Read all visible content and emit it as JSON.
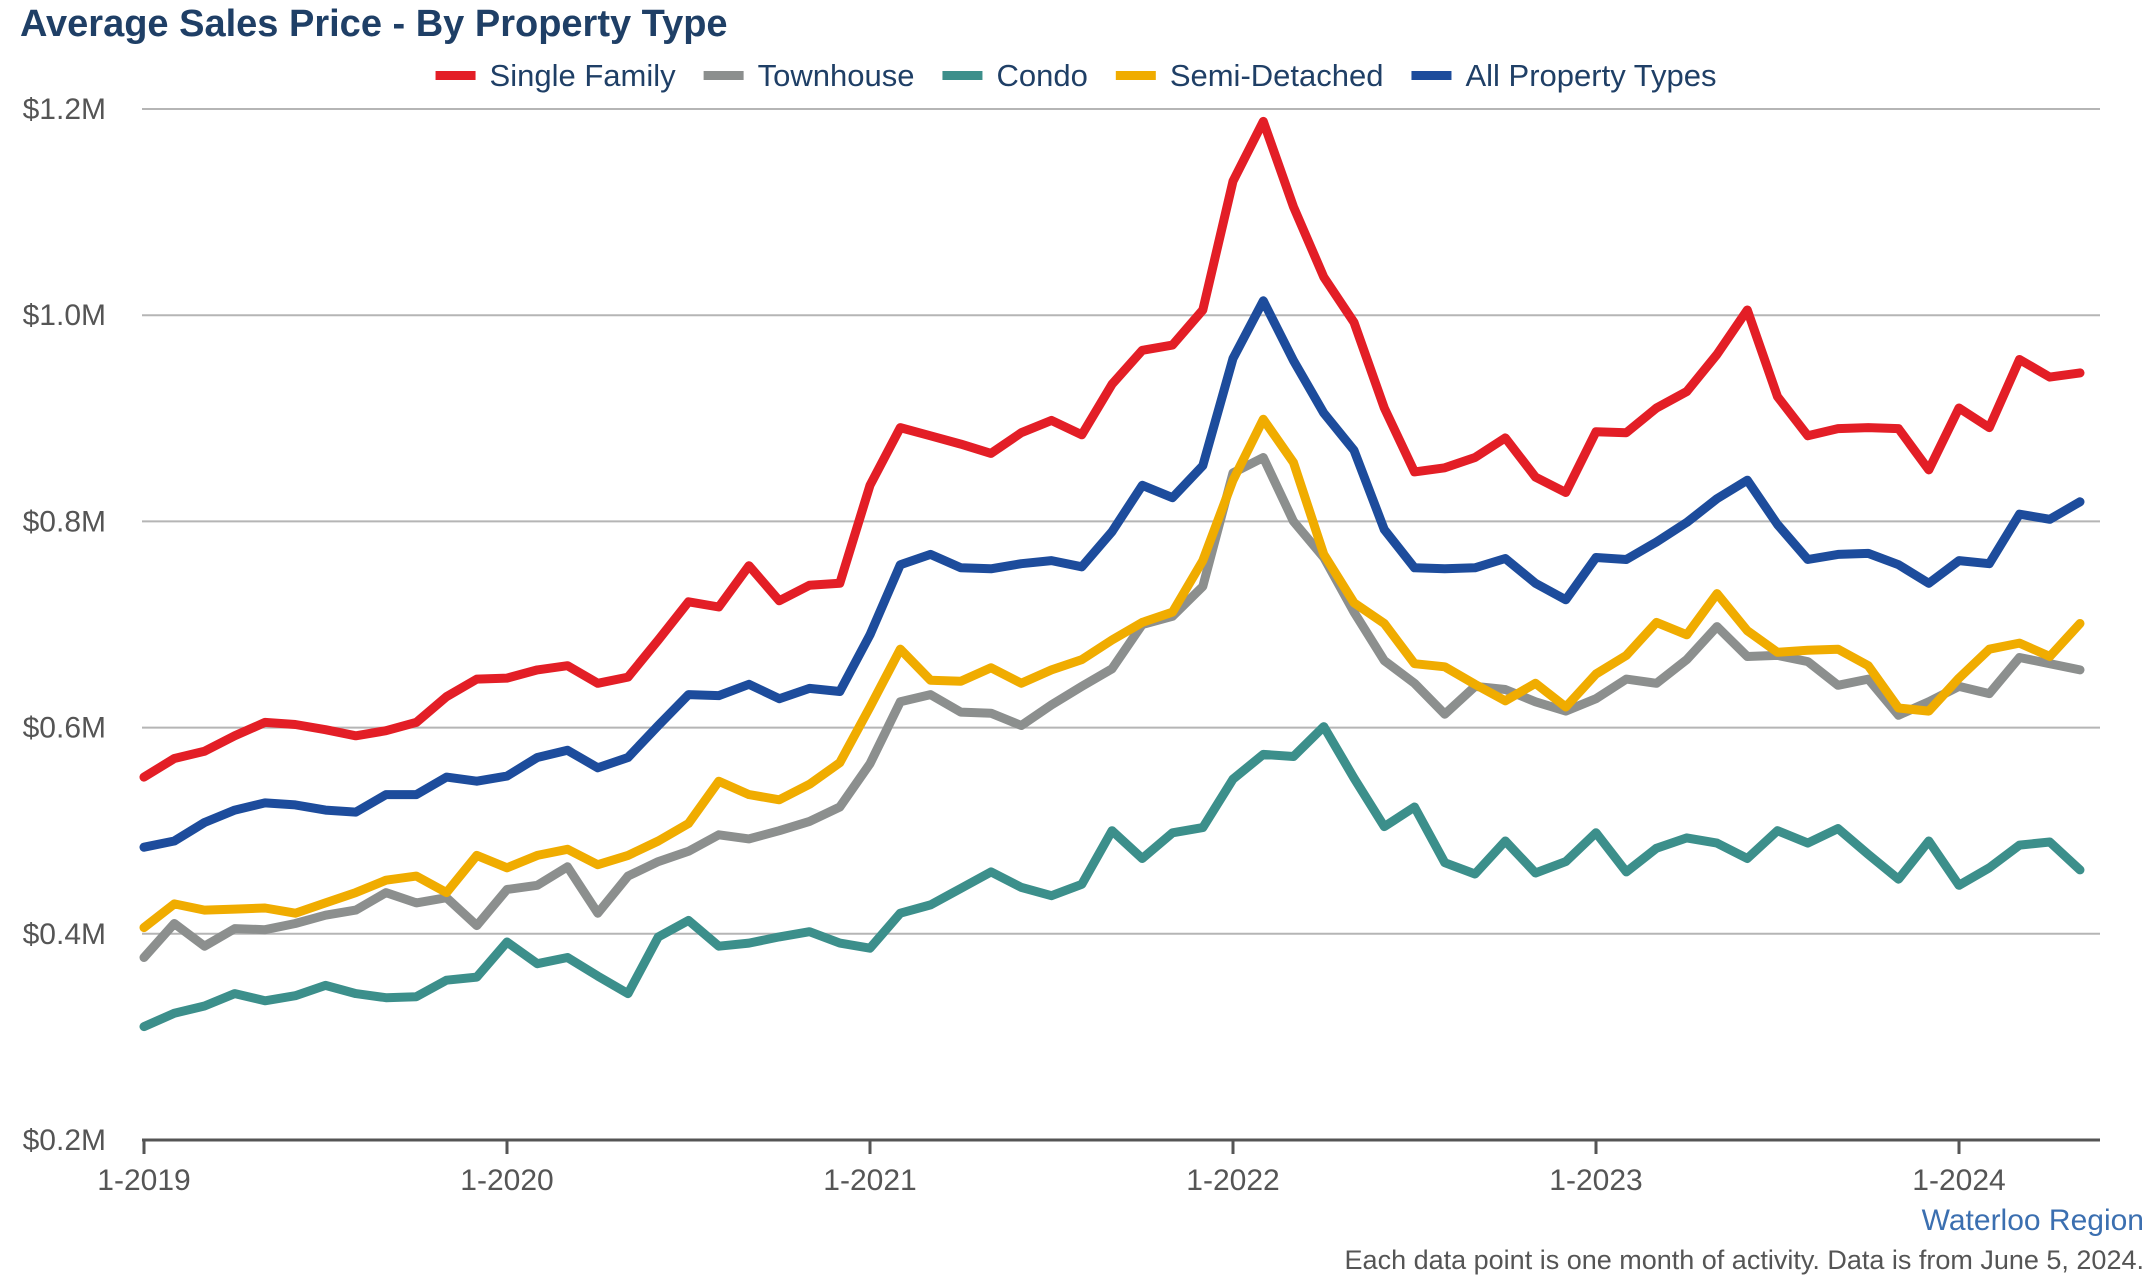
{
  "chart_data": {
    "type": "line",
    "title": "Average Sales Price - By Property Type",
    "xlabel": "",
    "ylabel": "",
    "x_start": "2019-01",
    "x_end": "2024-05",
    "x_ticks": [
      "1-2019",
      "1-2020",
      "1-2021",
      "1-2022",
      "1-2023",
      "1-2024"
    ],
    "y_ticks": [
      "$0.2M",
      "$0.4M",
      "$0.6M",
      "$0.8M",
      "$1.0M",
      "$1.2M"
    ],
    "y_tick_values": [
      0.2,
      0.4,
      0.6,
      0.8,
      1.0,
      1.2
    ],
    "ylim": [
      0.2,
      1.2
    ],
    "y_unit": "$M",
    "grid": "horizontal",
    "legend_position": "top",
    "region_label": "Waterloo Region",
    "footnote": "Each data point is one month of activity. Data is from June 5, 2024.",
    "series": [
      {
        "name": "Single Family",
        "color": "#e31e26",
        "values": [
          0.552,
          0.57,
          0.577,
          0.592,
          0.605,
          0.603,
          0.598,
          0.592,
          0.597,
          0.605,
          0.63,
          0.647,
          0.648,
          0.656,
          0.66,
          0.643,
          0.649,
          0.685,
          0.722,
          0.717,
          0.757,
          0.723,
          0.738,
          0.74,
          0.835,
          0.891,
          0.883,
          0.875,
          0.866,
          0.886,
          0.898,
          0.884,
          0.933,
          0.966,
          0.971,
          1.005,
          1.13,
          1.188,
          1.105,
          1.037,
          0.993,
          0.91,
          0.848,
          0.852,
          0.862,
          0.881,
          0.843,
          0.828,
          0.887,
          0.886,
          0.91,
          0.926,
          0.962,
          1.005,
          0.921,
          0.883,
          0.89,
          0.891,
          0.89,
          0.85,
          0.91,
          0.891,
          0.957,
          0.94,
          0.944
        ]
      },
      {
        "name": "Townhouse",
        "color": "#8c8f8e",
        "values": [
          0.377,
          0.41,
          0.388,
          0.405,
          0.404,
          0.41,
          0.418,
          0.423,
          0.44,
          0.43,
          0.435,
          0.408,
          0.443,
          0.447,
          0.465,
          0.42,
          0.456,
          0.47,
          0.48,
          0.496,
          0.492,
          0.5,
          0.509,
          0.523,
          0.565,
          0.625,
          0.632,
          0.615,
          0.614,
          0.602,
          0.622,
          0.64,
          0.657,
          0.7,
          0.708,
          0.737,
          0.847,
          0.862,
          0.8,
          0.765,
          0.712,
          0.665,
          0.643,
          0.613,
          0.64,
          0.637,
          0.625,
          0.616,
          0.628,
          0.647,
          0.643,
          0.666,
          0.698,
          0.669,
          0.67,
          0.664,
          0.641,
          0.647,
          0.612,
          0.625,
          0.64,
          0.633,
          0.668,
          0.662,
          0.656
        ]
      },
      {
        "name": "Condo",
        "color": "#3c8f8b",
        "values": [
          0.31,
          0.323,
          0.33,
          0.342,
          0.335,
          0.34,
          0.35,
          0.342,
          0.338,
          0.339,
          0.355,
          0.358,
          0.392,
          0.371,
          0.377,
          0.359,
          0.342,
          0.397,
          0.413,
          0.388,
          0.391,
          0.397,
          0.402,
          0.391,
          0.386,
          0.42,
          0.428,
          0.444,
          0.46,
          0.445,
          0.437,
          0.448,
          0.5,
          0.473,
          0.498,
          0.503,
          0.55,
          0.574,
          0.572,
          0.601,
          0.551,
          0.504,
          0.523,
          0.469,
          0.458,
          0.49,
          0.459,
          0.47,
          0.498,
          0.46,
          0.483,
          0.493,
          0.488,
          0.473,
          0.5,
          0.488,
          0.502,
          0.477,
          0.453,
          0.49,
          0.447,
          0.464,
          0.486,
          0.489,
          0.462
        ]
      },
      {
        "name": "Semi-Detached",
        "color": "#f0ac00",
        "values": [
          0.406,
          0.429,
          0.423,
          0.424,
          0.425,
          0.42,
          0.43,
          0.44,
          0.452,
          0.456,
          0.44,
          0.476,
          0.464,
          0.476,
          0.482,
          0.467,
          0.476,
          0.49,
          0.507,
          0.548,
          0.535,
          0.53,
          0.545,
          0.566,
          0.62,
          0.676,
          0.646,
          0.645,
          0.658,
          0.643,
          0.656,
          0.666,
          0.685,
          0.702,
          0.712,
          0.762,
          0.84,
          0.899,
          0.857,
          0.768,
          0.721,
          0.701,
          0.662,
          0.659,
          0.642,
          0.626,
          0.643,
          0.62,
          0.652,
          0.67,
          0.702,
          0.69,
          0.73,
          0.694,
          0.673,
          0.675,
          0.676,
          0.66,
          0.619,
          0.616,
          0.648,
          0.676,
          0.682,
          0.669,
          0.701
        ]
      },
      {
        "name": "All Property Types",
        "color": "#1d4c9c",
        "values": [
          0.484,
          0.49,
          0.508,
          0.52,
          0.527,
          0.525,
          0.52,
          0.518,
          0.535,
          0.535,
          0.552,
          0.548,
          0.553,
          0.571,
          0.578,
          0.561,
          0.571,
          0.602,
          0.632,
          0.631,
          0.642,
          0.628,
          0.638,
          0.635,
          0.69,
          0.758,
          0.768,
          0.755,
          0.754,
          0.759,
          0.762,
          0.756,
          0.79,
          0.835,
          0.823,
          0.854,
          0.958,
          1.014,
          0.956,
          0.905,
          0.869,
          0.792,
          0.755,
          0.754,
          0.755,
          0.764,
          0.74,
          0.724,
          0.765,
          0.763,
          0.78,
          0.799,
          0.822,
          0.84,
          0.797,
          0.763,
          0.768,
          0.769,
          0.758,
          0.74,
          0.762,
          0.759,
          0.807,
          0.802,
          0.819
        ]
      }
    ]
  }
}
